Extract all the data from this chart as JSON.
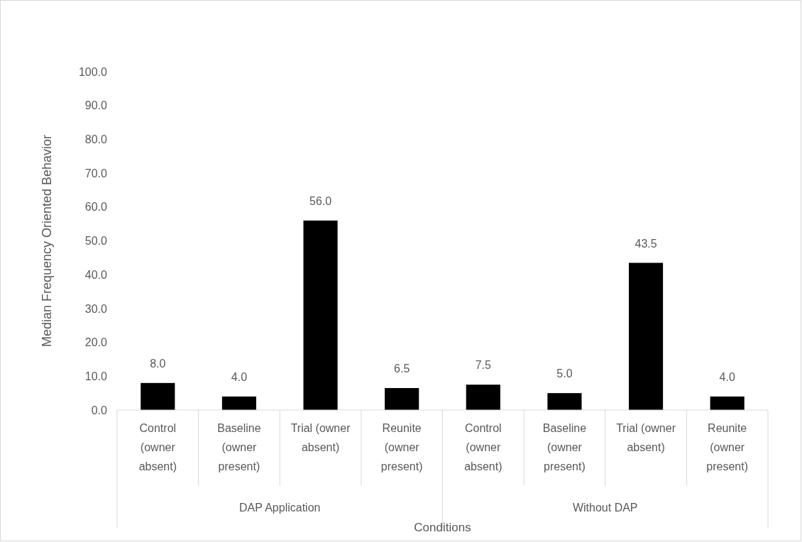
{
  "chart_data": {
    "type": "bar",
    "xlabel": "Conditions",
    "ylabel": "Median Frequency Oriented Behavior",
    "categories": [
      "Control (owner absent)",
      "Baseline (owner present)",
      "Trial (owner absent)",
      "Reunite (owner present)",
      "Control (owner absent)",
      "Baseline (owner present)",
      "Trial (owner absent)",
      "Reunite (owner present)"
    ],
    "values": [
      8.0,
      4.0,
      56.0,
      6.5,
      7.5,
      5.0,
      43.5,
      4.0
    ],
    "color": "#000000",
    "annotations": [
      "DAP Application",
      "Without DAP"
    ],
    "ylim": [
      0,
      100
    ],
    "yticks": [
      {
        "value": 0,
        "label": "0.0"
      },
      {
        "value": 10,
        "label": "10.0"
      },
      {
        "value": 20,
        "label": "20.0"
      },
      {
        "value": 30,
        "label": "30.0"
      },
      {
        "value": 40,
        "label": "40.0"
      },
      {
        "value": 50,
        "label": "50.0"
      },
      {
        "value": 60,
        "label": "60.0"
      },
      {
        "value": 70,
        "label": "70.0"
      },
      {
        "value": 80,
        "label": "80.0"
      },
      {
        "value": 90,
        "label": "90.0"
      },
      {
        "value": 100,
        "label": "100.0"
      }
    ],
    "value_labels": [
      "8.0",
      "4.0",
      "56.0",
      "6.5",
      "7.5",
      "5.0",
      "43.5",
      "4.0"
    ],
    "grid": false
  }
}
